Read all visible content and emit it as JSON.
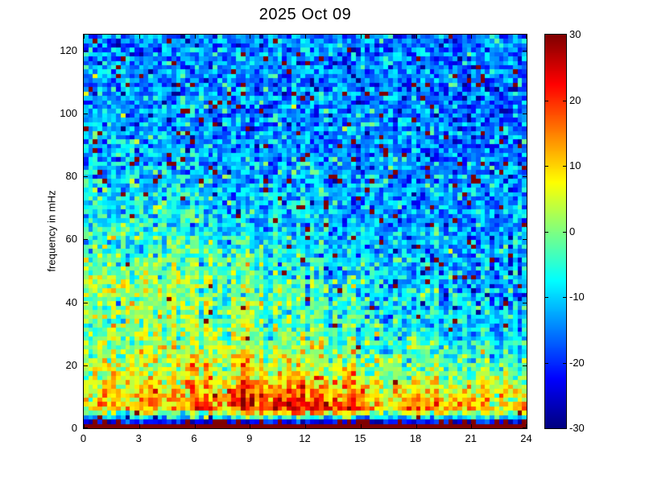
{
  "chart_data": {
    "type": "heatmap",
    "title": "2025 Oct 09",
    "xlabel": "",
    "ylabel": "frequency in mHz",
    "xlim": [
      0,
      24
    ],
    "ylim": [
      0,
      125
    ],
    "x_ticks": [
      0,
      3,
      6,
      9,
      12,
      15,
      18,
      21,
      24
    ],
    "y_ticks": [
      0,
      20,
      40,
      60,
      80,
      100,
      120
    ],
    "grid_on": false,
    "frame_color": "#000000",
    "background_color": "#ffffff",
    "colorbar": {
      "min": -30,
      "max": 30,
      "ticks": [
        -30,
        -20,
        -10,
        0,
        10,
        20,
        30
      ],
      "colormap": "jet",
      "position": "right"
    },
    "grid": {
      "cols": 96,
      "rows": 90
    },
    "pattern": {
      "description": "Power (dB) vs time-of-day and frequency. Solid dark-red row at 0 mHz; dark-blue strip just above it with red dashes; strong red band 2-15 mHz peaking hours 8-15 and again 18-22; yellow-green activity up to ~60 mHz before hour 15 with vertical streaks; blue noisy background above 60 mHz with scattered dark-red spike pixels.",
      "seed": 20251009,
      "noise_sigma": 5.5,
      "col_offset_sigma": 2.2,
      "spike_value": 30,
      "spike_density_cold": 0.03,
      "dark_spike_density": 0.012,
      "spike_density_mid": 0.008,
      "blue_strip_value": -22,
      "blue_strip_red_density": 0.22,
      "bottom_row_value": 30,
      "time_block_centers": [
        1.5,
        4.5,
        7.5,
        10.5,
        13.5,
        16.5,
        19.5,
        22.5
      ],
      "freq_band_centers": [
        0.7,
        2.1,
        6,
        12,
        18,
        30,
        45,
        62,
        88,
        118
      ],
      "mean_db": [
        [
          30,
          30,
          30,
          30,
          30,
          30,
          30,
          30
        ],
        [
          -22,
          -22,
          -22,
          -22,
          -22,
          -22,
          -22,
          -22
        ],
        [
          8,
          9,
          17,
          22,
          22,
          10,
          14,
          11
        ],
        [
          6,
          7,
          12,
          14,
          13,
          5,
          8,
          6
        ],
        [
          3,
          4,
          5,
          5,
          4,
          -1,
          1,
          -2
        ],
        [
          -1,
          -1,
          0,
          -2,
          -2,
          -7,
          -8,
          -9
        ],
        [
          0,
          1,
          -2,
          -4,
          -5,
          -9,
          -10,
          -11
        ],
        [
          -6,
          -6,
          -8,
          -9,
          -10,
          -12,
          -13,
          -13
        ],
        [
          -12,
          -12,
          -13,
          -13,
          -14,
          -14,
          -15,
          -15
        ],
        [
          -14,
          -14,
          -14,
          -15,
          -15,
          -15,
          -16,
          -16
        ]
      ],
      "streaks": [
        {
          "hour": 1.2,
          "top_freq": 62,
          "boost": 4
        },
        {
          "hour": 3.2,
          "top_freq": 55,
          "boost": 5
        },
        {
          "hour": 3.9,
          "top_freq": 50,
          "boost": 4
        },
        {
          "hour": 6.1,
          "top_freq": 62,
          "boost": 5
        },
        {
          "hour": 8.7,
          "top_freq": 60,
          "boost": 5
        },
        {
          "hour": 9.4,
          "top_freq": 55,
          "boost": 4
        },
        {
          "hour": 11.3,
          "top_freq": 58,
          "boost": 4
        },
        {
          "hour": 12.1,
          "top_freq": 50,
          "boost": 4
        },
        {
          "hour": 14.2,
          "top_freq": 45,
          "boost": 9
        },
        {
          "hour": 17.6,
          "top_freq": 30,
          "boost": 4
        },
        {
          "hour": 20.9,
          "top_freq": 25,
          "boost": 4
        }
      ]
    }
  }
}
